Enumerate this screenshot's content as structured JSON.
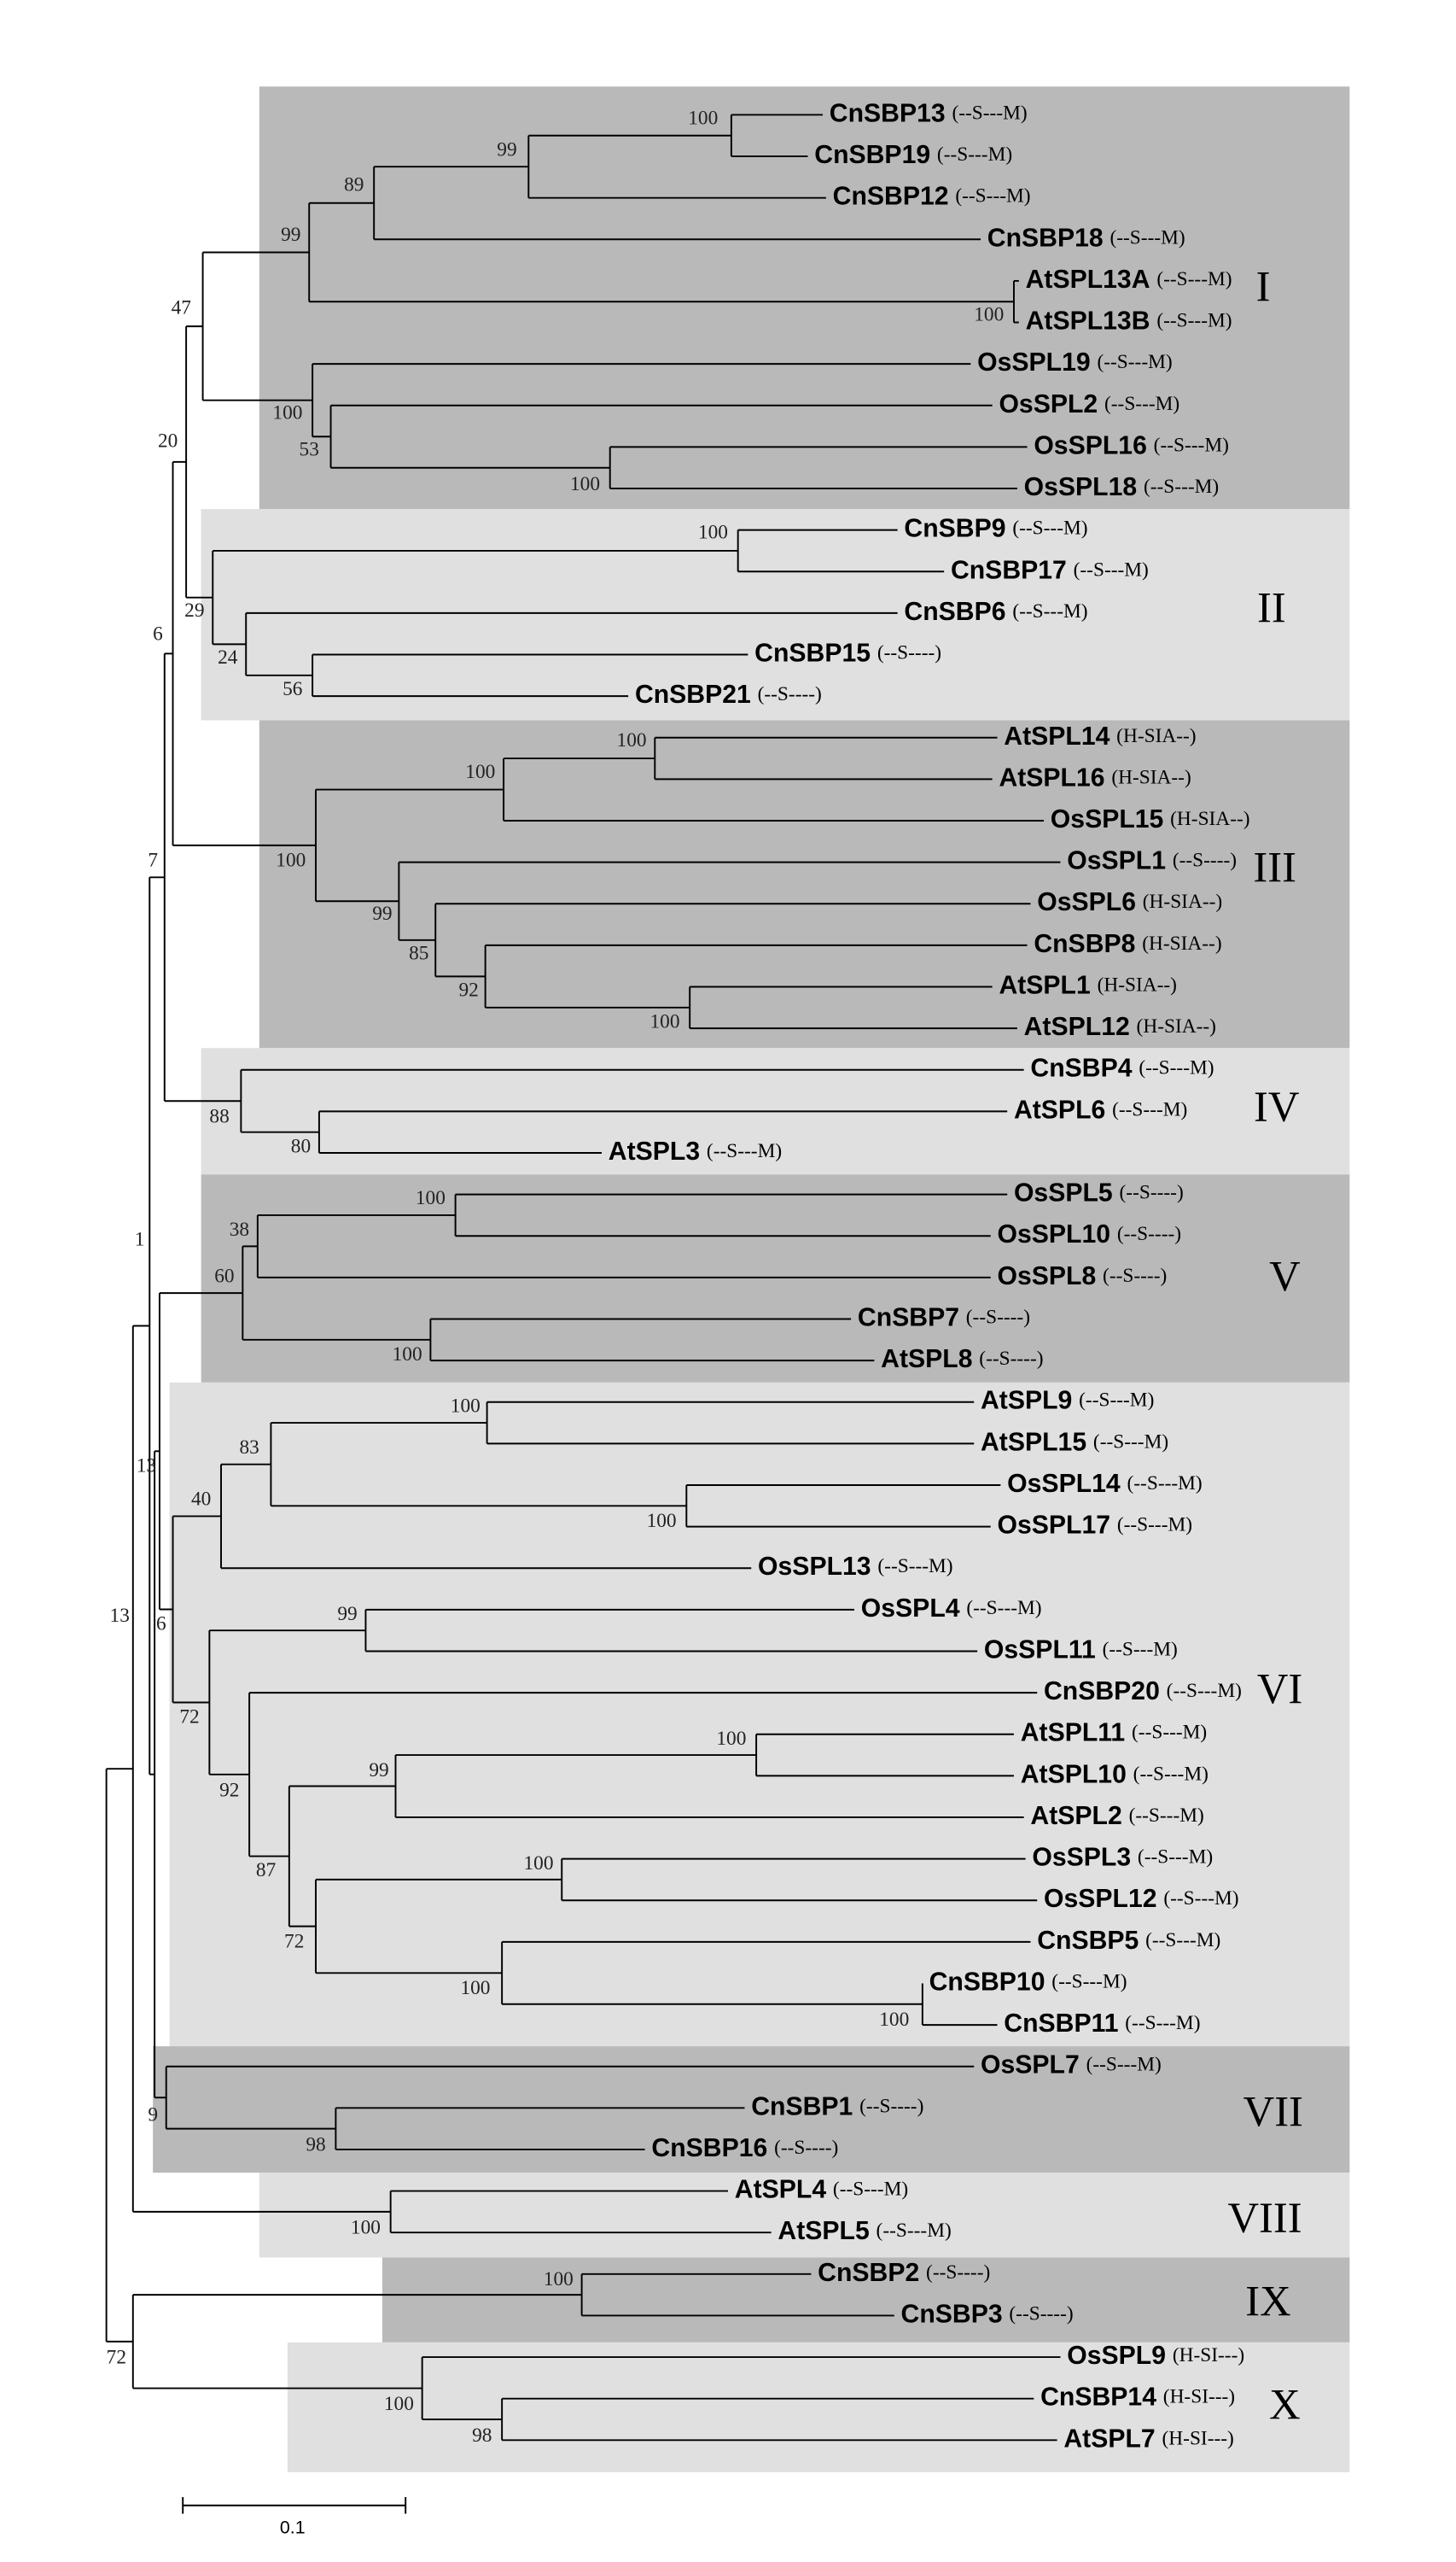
{
  "leaves": [
    {
      "name": "CnSBP13",
      "motif": "(--S---M)"
    },
    {
      "name": "CnSBP19",
      "motif": "(--S---M)"
    },
    {
      "name": "CnSBP12",
      "motif": "(--S---M)"
    },
    {
      "name": "CnSBP18",
      "motif": "(--S---M)"
    },
    {
      "name": "AtSPL13A",
      "motif": "(--S---M)"
    },
    {
      "name": "AtSPL13B",
      "motif": "(--S---M)"
    },
    {
      "name": "OsSPL19",
      "motif": "(--S---M)"
    },
    {
      "name": "OsSPL2",
      "motif": "(--S---M)"
    },
    {
      "name": "OsSPL16",
      "motif": "(--S---M)"
    },
    {
      "name": "OsSPL18",
      "motif": "(--S---M)"
    },
    {
      "name": "CnSBP9",
      "motif": "(--S---M)"
    },
    {
      "name": "CnSBP17",
      "motif": "(--S---M)"
    },
    {
      "name": "CnSBP6",
      "motif": "(--S---M)"
    },
    {
      "name": "CnSBP15",
      "motif": "(--S----)"
    },
    {
      "name": "CnSBP21",
      "motif": "(--S----)"
    },
    {
      "name": "AtSPL14",
      "motif": "(H-SIA--)"
    },
    {
      "name": "AtSPL16",
      "motif": "(H-SIA--)"
    },
    {
      "name": "OsSPL15",
      "motif": "(H-SIA--)"
    },
    {
      "name": "OsSPL1",
      "motif": "(--S----)"
    },
    {
      "name": "OsSPL6",
      "motif": "(H-SIA--)"
    },
    {
      "name": "CnSBP8",
      "motif": "(H-SIA--)"
    },
    {
      "name": "AtSPL1",
      "motif": "(H-SIA--)"
    },
    {
      "name": "AtSPL12",
      "motif": "(H-SIA--)"
    },
    {
      "name": "CnSBP4",
      "motif": "(--S---M)"
    },
    {
      "name": "AtSPL6",
      "motif": "(--S---M)"
    },
    {
      "name": "AtSPL3",
      "motif": "(--S---M)"
    },
    {
      "name": "OsSPL5",
      "motif": "(--S----)"
    },
    {
      "name": "OsSPL10",
      "motif": "(--S----)"
    },
    {
      "name": "OsSPL8",
      "motif": "(--S----)"
    },
    {
      "name": "CnSBP7",
      "motif": "(--S----)"
    },
    {
      "name": "AtSPL8",
      "motif": "(--S----)"
    },
    {
      "name": "AtSPL9",
      "motif": "(--S---M)"
    },
    {
      "name": "AtSPL15",
      "motif": "(--S---M)"
    },
    {
      "name": "OsSPL14",
      "motif": "(--S---M)"
    },
    {
      "name": "OsSPL17",
      "motif": "(--S---M)"
    },
    {
      "name": "OsSPL13",
      "motif": "(--S---M)"
    },
    {
      "name": "OsSPL4",
      "motif": "(--S---M)"
    },
    {
      "name": "OsSPL11",
      "motif": "(--S---M)"
    },
    {
      "name": "CnSBP20",
      "motif": "(--S---M)"
    },
    {
      "name": "AtSPL11",
      "motif": "(--S---M)"
    },
    {
      "name": "AtSPL10",
      "motif": "(--S---M)"
    },
    {
      "name": "AtSPL2",
      "motif": "(--S---M)"
    },
    {
      "name": "OsSPL3",
      "motif": "(--S---M)"
    },
    {
      "name": "OsSPL12",
      "motif": "(--S---M)"
    },
    {
      "name": "CnSBP5",
      "motif": "(--S---M)"
    },
    {
      "name": "CnSBP10",
      "motif": "(--S---M)"
    },
    {
      "name": "CnSBP11",
      "motif": "(--S---M)"
    },
    {
      "name": "OsSPL7",
      "motif": "(--S---M)"
    },
    {
      "name": "CnSBP1",
      "motif": "(--S----)"
    },
    {
      "name": "CnSBP16",
      "motif": "(--S----)"
    },
    {
      "name": "AtSPL4",
      "motif": "(--S---M)"
    },
    {
      "name": "AtSPL5",
      "motif": "(--S---M)"
    },
    {
      "name": "CnSBP2",
      "motif": "(--S----)"
    },
    {
      "name": "CnSBP3",
      "motif": "(--S----)"
    },
    {
      "name": "OsSPL9",
      "motif": "(H-SI---)"
    },
    {
      "name": "CnSBP14",
      "motif": "(H-SI---)"
    },
    {
      "name": "AtSPL7",
      "motif": "(H-SI---)"
    }
  ],
  "bootstrap": [
    100,
    99,
    89,
    100,
    99,
    100,
    53,
    100,
    47,
    100,
    56,
    24,
    29,
    20,
    100,
    100,
    100,
    92,
    85,
    99,
    100,
    6,
    80,
    88,
    7,
    100,
    38,
    100,
    60,
    100,
    100,
    83,
    40,
    99,
    100,
    99,
    100,
    100,
    100,
    72,
    87,
    92,
    72,
    6,
    98,
    9,
    13,
    1,
    100,
    13,
    100,
    98,
    100,
    72
  ],
  "clades": [
    "I",
    "II",
    "III",
    "IV",
    "V",
    "VI",
    "VII",
    "VIII",
    "IX",
    "X"
  ],
  "scale_bar": 0.1
}
